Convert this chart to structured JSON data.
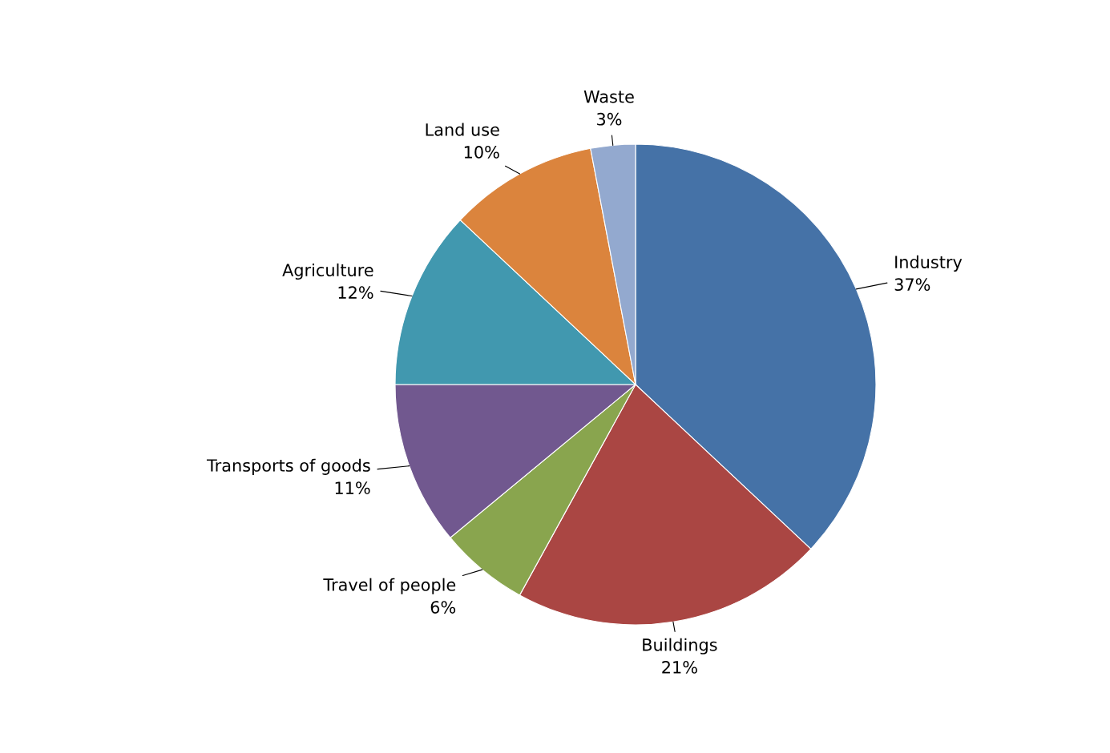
{
  "chart_data": {
    "type": "pie",
    "categories": [
      "Industry",
      "Buildings",
      "Travel of people",
      "Transports of goods",
      "Agriculture",
      "Land use",
      "Waste"
    ],
    "values": [
      37,
      21,
      6,
      11,
      12,
      10,
      3
    ],
    "colors": [
      "#4572a7",
      "#aa4643",
      "#89a54e",
      "#71588f",
      "#4198af",
      "#db843d",
      "#93a9cf"
    ],
    "value_labels": [
      "37%",
      "21%",
      "6%",
      "11%",
      "12%",
      "10%",
      "3%"
    ],
    "legend": false
  }
}
